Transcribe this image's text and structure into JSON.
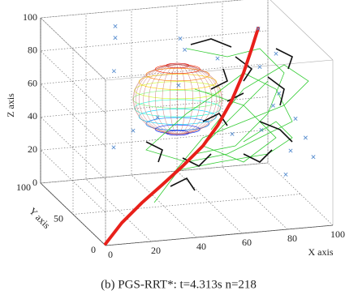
{
  "chart_data": {
    "type": "path3d",
    "title": "(b) PGS-RRT*: t=4.313s n=218",
    "xlabel": "X axis",
    "ylabel": "Y axis",
    "zlabel": "Z axis",
    "xlim": [
      0,
      100
    ],
    "ylim": [
      0,
      100
    ],
    "zlim": [
      0,
      100
    ],
    "xticks": [
      0,
      20,
      40,
      60,
      80,
      100
    ],
    "yticks": [
      0,
      50,
      100
    ],
    "zticks": [
      0,
      20,
      40,
      60,
      80,
      100
    ],
    "grid": true,
    "obstacle": {
      "center": [
        46,
        50,
        64
      ],
      "radius": 20
    },
    "series": [
      {
        "kind": "path",
        "color": "#e8201a",
        "x": [
          0,
          10,
          22.5,
          35,
          47.5,
          60,
          69,
          77.5,
          85,
          90,
          94
        ],
        "y": [
          0,
          10,
          22.5,
          35,
          47.5,
          60,
          69,
          77.5,
          85,
          90,
          94
        ],
        "z": [
          1,
          8.7,
          14.7,
          19.3,
          24.3,
          30.3,
          38,
          48.5,
          61.9,
          74,
          84.4
        ]
      },
      {
        "kind": "scatter",
        "color": "#5a8fd0",
        "x": [
          30,
          30,
          28,
          35,
          25,
          60,
          62,
          90,
          95,
          85,
          92,
          95,
          98,
          90,
          80,
          70,
          88,
          75,
          55,
          40,
          100,
          85
        ],
        "y": [
          90,
          90,
          85,
          80,
          75,
          95,
          95,
          80,
          70,
          60,
          55,
          40,
          35,
          30,
          40,
          50,
          50,
          90,
          80,
          60,
          30,
          20
        ],
        "z": [
          95,
          88,
          70,
          35,
          28,
          82,
          75,
          90,
          78,
          75,
          60,
          50,
          40,
          35,
          45,
          40,
          55,
          70,
          60,
          50,
          30,
          25
        ]
      }
    ]
  }
}
